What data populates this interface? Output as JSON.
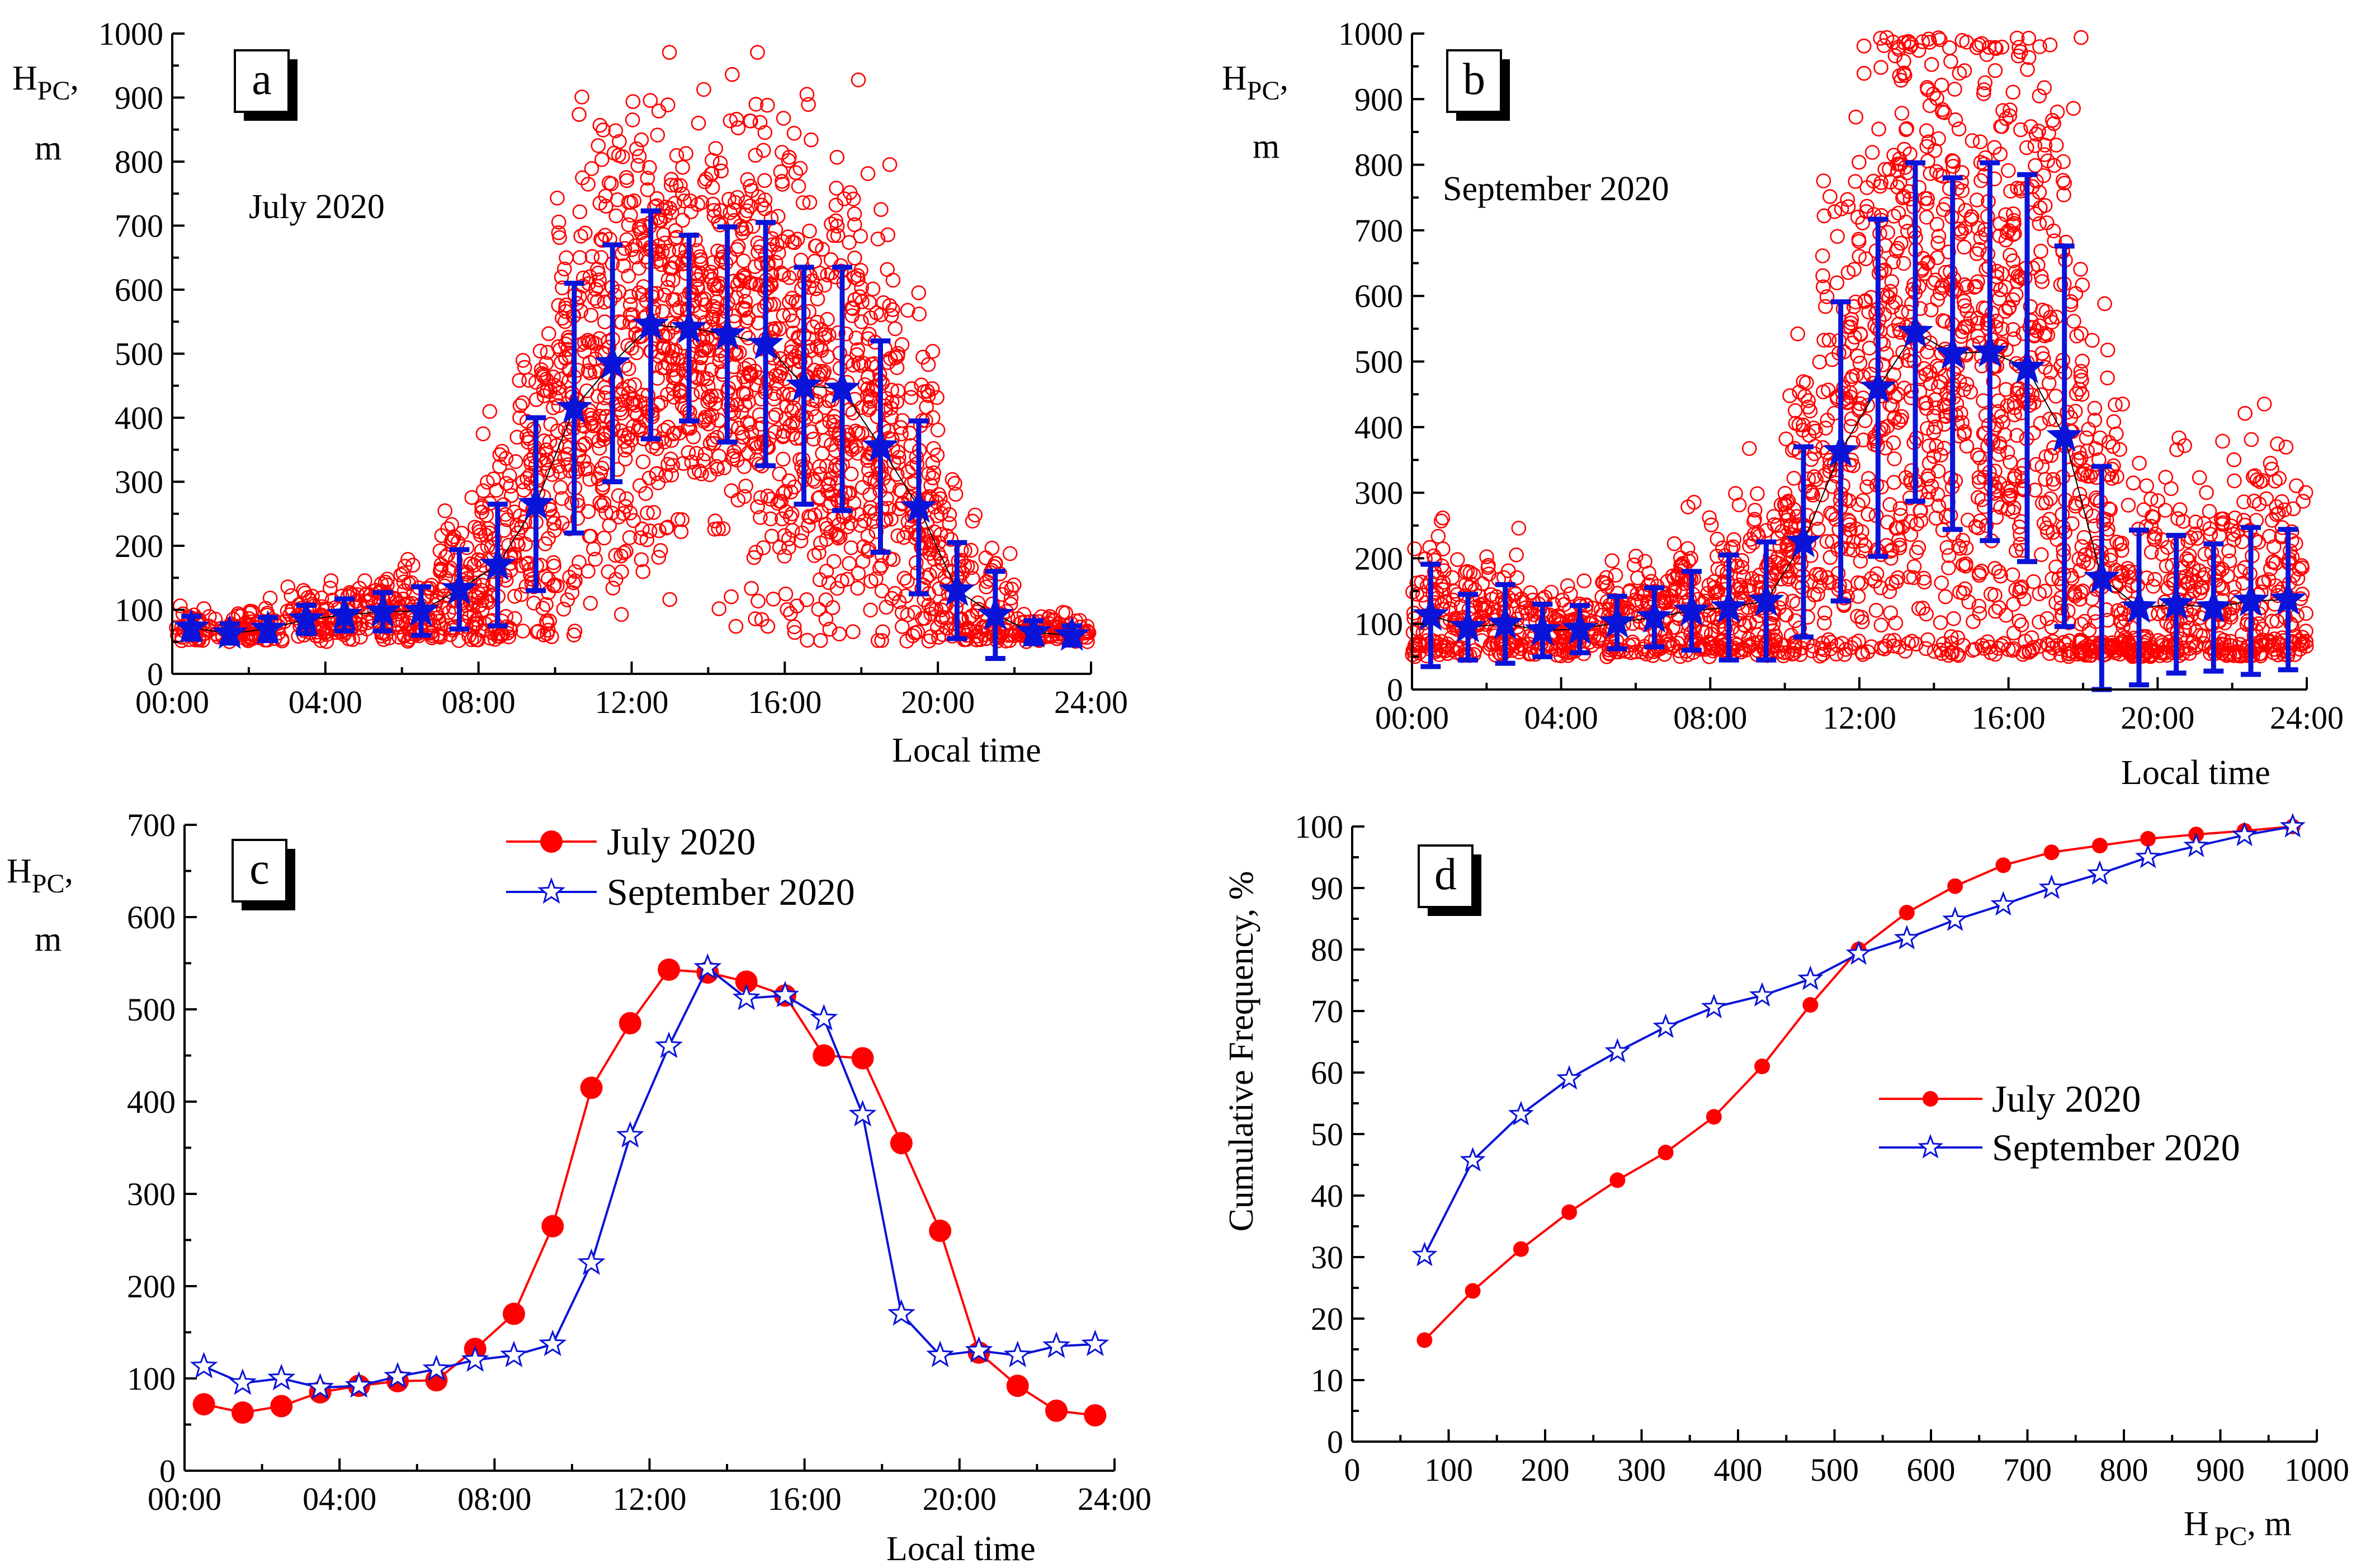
{
  "colors": {
    "july": "#ff0000",
    "september": "#0a14d8",
    "axis": "#000000"
  },
  "chart_data": [
    {
      "id": "a",
      "type": "scatter",
      "panel_label": "a",
      "annotation": "July 2020",
      "ylabel": {
        "main": "H",
        "sub": "PC",
        "tail": ",",
        "unit": "m"
      },
      "xlabel": "Local time",
      "xlim": [
        0,
        24
      ],
      "ylim": [
        0,
        1000
      ],
      "xticks": [
        0,
        4,
        8,
        12,
        16,
        20,
        24
      ],
      "xtick_labels": [
        "00:00",
        "04:00",
        "08:00",
        "12:00",
        "16:00",
        "20:00",
        "24:00"
      ],
      "yticks": [
        0,
        100,
        200,
        300,
        400,
        500,
        600,
        700,
        800,
        900,
        1000
      ],
      "ytick_labels": [
        "0",
        "100",
        "200",
        "300",
        "400",
        "500",
        "600",
        "700",
        "800",
        "900",
        "1000"
      ],
      "scatter_profile": [
        {
          "hour": 0.5,
          "center": 70,
          "spread": 18,
          "count": 40
        },
        {
          "hour": 1.5,
          "center": 65,
          "spread": 15,
          "count": 40
        },
        {
          "hour": 2.5,
          "center": 70,
          "spread": 18,
          "count": 40
        },
        {
          "hour": 3.5,
          "center": 85,
          "spread": 22,
          "count": 45
        },
        {
          "hour": 4.5,
          "center": 92,
          "spread": 25,
          "count": 50
        },
        {
          "hour": 5.5,
          "center": 97,
          "spread": 30,
          "count": 55
        },
        {
          "hour": 6.5,
          "center": 98,
          "spread": 40,
          "count": 60
        },
        {
          "hour": 7.5,
          "center": 130,
          "spread": 60,
          "count": 75
        },
        {
          "hour": 8.5,
          "center": 170,
          "spread": 95,
          "count": 90
        },
        {
          "hour": 9.5,
          "center": 265,
          "spread": 130,
          "count": 110
        },
        {
          "hour": 10.5,
          "center": 415,
          "spread": 190,
          "count": 130
        },
        {
          "hour": 11.5,
          "center": 485,
          "spread": 180,
          "count": 140
        },
        {
          "hour": 12.5,
          "center": 545,
          "spread": 175,
          "count": 150
        },
        {
          "hour": 13.5,
          "center": 540,
          "spread": 150,
          "count": 150
        },
        {
          "hour": 14.5,
          "center": 530,
          "spread": 170,
          "count": 150
        },
        {
          "hour": 15.5,
          "center": 515,
          "spread": 190,
          "count": 150
        },
        {
          "hour": 16.5,
          "center": 450,
          "spread": 185,
          "count": 140
        },
        {
          "hour": 17.5,
          "center": 445,
          "spread": 190,
          "count": 140
        },
        {
          "hour": 18.5,
          "center": 355,
          "spread": 165,
          "count": 130
        },
        {
          "hour": 19.5,
          "center": 260,
          "spread": 135,
          "count": 110
        },
        {
          "hour": 20.5,
          "center": 130,
          "spread": 75,
          "count": 70
        },
        {
          "hour": 21.5,
          "center": 92,
          "spread": 65,
          "count": 55
        },
        {
          "hour": 22.5,
          "center": 65,
          "spread": 18,
          "count": 40
        },
        {
          "hour": 23.5,
          "center": 60,
          "spread": 15,
          "count": 40
        }
      ],
      "means": {
        "x": [
          0.5,
          1.5,
          2.5,
          3.5,
          4.5,
          5.5,
          6.5,
          7.5,
          8.5,
          9.5,
          10.5,
          11.5,
          12.5,
          13.5,
          14.5,
          15.5,
          16.5,
          17.5,
          18.5,
          19.5,
          20.5,
          21.5,
          22.5,
          23.5
        ],
        "y": [
          72,
          63,
          70,
          85,
          92,
          97,
          98,
          132,
          170,
          265,
          415,
          485,
          545,
          540,
          530,
          515,
          450,
          445,
          355,
          260,
          130,
          92,
          65,
          60
        ],
        "err": [
          18,
          15,
          18,
          22,
          25,
          30,
          38,
          62,
          95,
          135,
          195,
          185,
          178,
          145,
          168,
          190,
          185,
          190,
          165,
          135,
          75,
          68,
          18,
          15
        ]
      }
    },
    {
      "id": "b",
      "type": "scatter",
      "panel_label": "b",
      "annotation": "September 2020",
      "ylabel": {
        "main": "H",
        "sub": "PC",
        "tail": ",",
        "unit": "m"
      },
      "xlabel": "Local time",
      "xlim": [
        0,
        24
      ],
      "ylim": [
        0,
        1000
      ],
      "xticks": [
        0,
        4,
        8,
        12,
        16,
        20,
        24
      ],
      "xtick_labels": [
        "00:00",
        "04:00",
        "08:00",
        "12:00",
        "16:00",
        "20:00",
        "24:00"
      ],
      "yticks": [
        0,
        100,
        200,
        300,
        400,
        500,
        600,
        700,
        800,
        900,
        1000
      ],
      "ytick_labels": [
        "0",
        "100",
        "200",
        "300",
        "400",
        "500",
        "600",
        "700",
        "800",
        "900",
        "1000"
      ],
      "scatter_profile": [
        {
          "hour": 0.5,
          "center": 115,
          "spread": 75,
          "count": 70
        },
        {
          "hour": 1.5,
          "center": 95,
          "spread": 50,
          "count": 60
        },
        {
          "hour": 2.5,
          "center": 100,
          "spread": 60,
          "count": 65
        },
        {
          "hour": 3.5,
          "center": 90,
          "spread": 40,
          "count": 55
        },
        {
          "hour": 4.5,
          "center": 92,
          "spread": 35,
          "count": 55
        },
        {
          "hour": 5.5,
          "center": 100,
          "spread": 40,
          "count": 60
        },
        {
          "hour": 6.5,
          "center": 110,
          "spread": 45,
          "count": 65
        },
        {
          "hour": 7.5,
          "center": 120,
          "spread": 60,
          "count": 75
        },
        {
          "hour": 8.5,
          "center": 125,
          "spread": 80,
          "count": 85
        },
        {
          "hour": 9.5,
          "center": 135,
          "spread": 90,
          "count": 95
        },
        {
          "hour": 10.5,
          "center": 225,
          "spread": 145,
          "count": 110
        },
        {
          "hour": 11.5,
          "center": 365,
          "spread": 225,
          "count": 130
        },
        {
          "hour": 12.5,
          "center": 460,
          "spread": 255,
          "count": 145
        },
        {
          "hour": 13.5,
          "center": 545,
          "spread": 255,
          "count": 160
        },
        {
          "hour": 14.5,
          "center": 510,
          "spread": 265,
          "count": 160
        },
        {
          "hour": 15.5,
          "center": 515,
          "spread": 285,
          "count": 160
        },
        {
          "hour": 16.5,
          "center": 490,
          "spread": 295,
          "count": 155
        },
        {
          "hour": 17.5,
          "center": 385,
          "spread": 290,
          "count": 140
        },
        {
          "hour": 18.5,
          "center": 170,
          "spread": 170,
          "count": 110
        },
        {
          "hour": 19.5,
          "center": 125,
          "spread": 115,
          "count": 90
        },
        {
          "hour": 20.5,
          "center": 130,
          "spread": 105,
          "count": 85
        },
        {
          "hour": 21.5,
          "center": 125,
          "spread": 95,
          "count": 80
        },
        {
          "hour": 22.5,
          "center": 135,
          "spread": 110,
          "count": 85
        },
        {
          "hour": 23.5,
          "center": 135,
          "spread": 105,
          "count": 85
        }
      ],
      "means": {
        "x": [
          0.5,
          1.5,
          2.5,
          3.5,
          4.5,
          5.5,
          6.5,
          7.5,
          8.5,
          9.5,
          10.5,
          11.5,
          12.5,
          13.5,
          14.5,
          15.5,
          16.5,
          17.5,
          18.5,
          19.5,
          20.5,
          21.5,
          22.5,
          23.5
        ],
        "y": [
          113,
          95,
          100,
          90,
          92,
          102,
          110,
          120,
          125,
          135,
          225,
          363,
          460,
          545,
          512,
          515,
          490,
          386,
          170,
          125,
          130,
          125,
          135,
          137
        ],
        "err": [
          78,
          50,
          60,
          40,
          36,
          40,
          45,
          60,
          80,
          90,
          145,
          228,
          257,
          258,
          268,
          288,
          295,
          290,
          170,
          118,
          105,
          97,
          112,
          107
        ]
      }
    },
    {
      "id": "c",
      "type": "line",
      "panel_label": "c",
      "ylabel": {
        "main": "H",
        "sub": "PC",
        "tail": ",",
        "unit": "m"
      },
      "xlabel": "Local time",
      "xlim": [
        0,
        24
      ],
      "ylim": [
        0,
        700
      ],
      "xticks": [
        0,
        4,
        8,
        12,
        16,
        20,
        24
      ],
      "xtick_labels": [
        "00:00",
        "04:00",
        "08:00",
        "12:00",
        "16:00",
        "20:00",
        "24:00"
      ],
      "yticks": [
        0,
        100,
        200,
        300,
        400,
        500,
        600,
        700
      ],
      "ytick_labels": [
        "0",
        "100",
        "200",
        "300",
        "400",
        "500",
        "600",
        "700"
      ],
      "legend_position": "top-center",
      "x": [
        0.5,
        1.5,
        2.5,
        3.5,
        4.5,
        5.5,
        6.5,
        7.5,
        8.5,
        9.5,
        10.5,
        11.5,
        12.5,
        13.5,
        14.5,
        15.5,
        16.5,
        17.5,
        18.5,
        19.5,
        20.5,
        21.5,
        22.5,
        23.5
      ],
      "series": [
        {
          "name": "July 2020",
          "marker": "circle",
          "values": [
            72,
            63,
            70,
            85,
            92,
            97,
            98,
            132,
            170,
            265,
            415,
            485,
            543,
            540,
            530,
            515,
            450,
            447,
            355,
            260,
            128,
            92,
            65,
            60
          ]
        },
        {
          "name": "September 2020",
          "marker": "star",
          "values": [
            113,
            95,
            100,
            90,
            92,
            102,
            110,
            120,
            125,
            137,
            225,
            363,
            460,
            545,
            512,
            515,
            490,
            386,
            170,
            125,
            130,
            125,
            135,
            137
          ]
        }
      ]
    },
    {
      "id": "d",
      "type": "line",
      "panel_label": "d",
      "ylabel": "Cumulative Frequency, %",
      "xlabel": {
        "main": "H",
        "sub": "PC",
        "tail": ", m"
      },
      "xlim": [
        0,
        1000
      ],
      "ylim": [
        0,
        100
      ],
      "xticks": [
        0,
        100,
        200,
        300,
        400,
        500,
        600,
        700,
        800,
        900,
        1000
      ],
      "xtick_labels": [
        "0",
        "100",
        "200",
        "300",
        "400",
        "500",
        "600",
        "700",
        "800",
        "900",
        "1000"
      ],
      "yticks": [
        0,
        10,
        20,
        30,
        40,
        50,
        60,
        70,
        80,
        90,
        100
      ],
      "ytick_labels": [
        "0",
        "10",
        "20",
        "30",
        "40",
        "50",
        "60",
        "70",
        "80",
        "90",
        "100"
      ],
      "legend_position": "center-right",
      "x": [
        75,
        125,
        175,
        225,
        275,
        325,
        375,
        425,
        475,
        525,
        575,
        625,
        675,
        725,
        775,
        825,
        875,
        925,
        975
      ],
      "series": [
        {
          "name": "July 2020",
          "marker": "circle",
          "values": [
            16.5,
            24.5,
            31.3,
            37.3,
            42.5,
            47.0,
            52.8,
            61.0,
            71.0,
            80.0,
            86.0,
            90.3,
            93.7,
            95.8,
            96.9,
            98.0,
            98.7,
            99.3,
            100
          ]
        },
        {
          "name": "September 2020",
          "marker": "star",
          "values": [
            30.3,
            45.7,
            53.2,
            59.0,
            63.4,
            67.4,
            70.6,
            72.5,
            75.2,
            79.3,
            81.8,
            84.8,
            87.3,
            90.0,
            92.3,
            95.0,
            96.8,
            98.6,
            100
          ]
        }
      ]
    }
  ]
}
